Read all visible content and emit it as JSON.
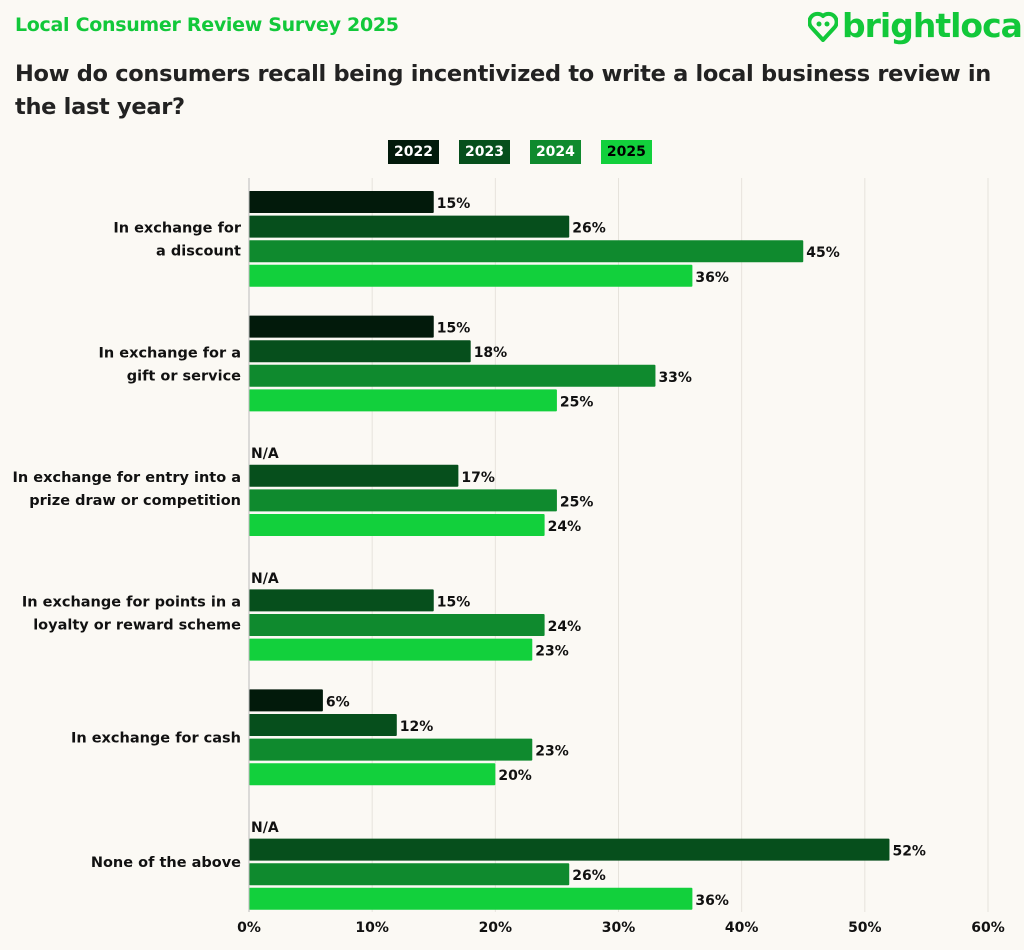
{
  "header": {
    "survey_title": "Local Consumer Review Survey 2025",
    "logo_text": "brightlocal"
  },
  "colors": {
    "2022": "#021a0b",
    "2023": "#064f1c",
    "2024": "#0f8a2e",
    "2025": "#12d03c",
    "accent": "#12c83a"
  },
  "chart_data": {
    "type": "bar",
    "orientation": "horizontal",
    "title": "How do consumers recall being incentivized to write a local business review in the last year?",
    "categories": [
      [
        "In exchange for",
        "a discount"
      ],
      [
        "In exchange for a",
        "gift or service"
      ],
      [
        "In exchange for entry into a",
        "prize draw or competition"
      ],
      [
        "In exchange for points in a",
        "loyalty or reward scheme"
      ],
      [
        "In exchange for cash"
      ],
      [
        "None of the above"
      ]
    ],
    "series": [
      {
        "name": "2022",
        "values": [
          15,
          15,
          null,
          null,
          6,
          null
        ]
      },
      {
        "name": "2023",
        "values": [
          26,
          18,
          17,
          15,
          12,
          52
        ]
      },
      {
        "name": "2024",
        "values": [
          45,
          33,
          25,
          24,
          23,
          26
        ]
      },
      {
        "name": "2025",
        "values": [
          36,
          25,
          24,
          23,
          20,
          36
        ]
      }
    ],
    "na_label": "N/A",
    "xlim": [
      0,
      60
    ],
    "xticks": [
      0,
      10,
      20,
      30,
      40,
      50,
      60
    ],
    "tick_suffix": "%",
    "grid": true,
    "legend": "top-center"
  }
}
